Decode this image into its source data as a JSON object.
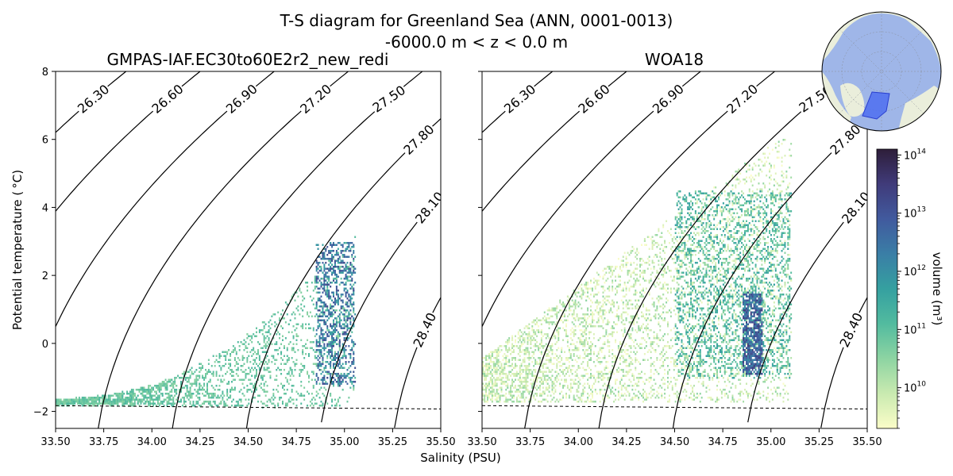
{
  "figure": {
    "title_line1": "T-S diagram for Greenland Sea (ANN, 0001-0013)",
    "title_line2": "-6000.0 m < z < 0.0 m",
    "xlabel": "Salinity (PSU)",
    "ylabel": "Potential temperature ( °C)",
    "colorbar_label": "volume (m³)"
  },
  "chart_data": [
    {
      "type": "heatmap",
      "title": "GMPAS-IAF.EC30to60E2r2_new_redi",
      "xlim": [
        33.5,
        35.5
      ],
      "ylim": [
        -2.5,
        8
      ],
      "xticks": [
        "33.50",
        "33.75",
        "34.00",
        "34.25",
        "34.50",
        "34.75",
        "35.00",
        "35.25",
        "35.50"
      ],
      "yticks": [
        "−2",
        "0",
        "2",
        "4",
        "6",
        "8"
      ],
      "density_contours": [
        "26.30",
        "26.60",
        "26.90",
        "27.20",
        "27.50",
        "27.80",
        "28.10",
        "28.40"
      ],
      "freezing_line": {
        "style": "dashed",
        "points": [
          [
            33.5,
            -1.83
          ],
          [
            35.5,
            -1.93
          ]
        ]
      },
      "scatter_regions": [
        {
          "s_min": 33.5,
          "s_max": 35.05,
          "t_min": -1.9,
          "t_max": 3.5,
          "volume_log10": [
            10.5,
            11.2
          ]
        },
        {
          "s_min": 34.85,
          "s_max": 35.05,
          "t_min": -1.2,
          "t_max": 3.0,
          "volume_log10": [
            11.5,
            13.3
          ]
        }
      ]
    },
    {
      "type": "heatmap",
      "title": "WOA18",
      "xlim": [
        33.5,
        35.5
      ],
      "ylim": [
        -2.5,
        8
      ],
      "xticks": [
        "33.50",
        "33.75",
        "34.00",
        "34.25",
        "34.50",
        "34.75",
        "35.00",
        "35.25",
        "35.50"
      ],
      "density_contours": [
        "26.30",
        "26.60",
        "26.90",
        "27.20",
        "27.50",
        "27.80",
        "28.10",
        "28.40"
      ],
      "freezing_line": {
        "style": "dashed",
        "points": [
          [
            33.5,
            -1.83
          ],
          [
            35.5,
            -1.93
          ]
        ]
      },
      "scatter_regions": [
        {
          "s_min": 33.5,
          "s_max": 35.1,
          "t_min": -1.7,
          "t_max": 6.0,
          "volume_log10": [
            9.3,
            10.5
          ]
        },
        {
          "s_min": 34.5,
          "s_max": 35.1,
          "t_min": -1.0,
          "t_max": 4.5,
          "volume_log10": [
            10.5,
            11.8
          ]
        },
        {
          "s_min": 34.85,
          "s_max": 34.95,
          "t_min": -0.9,
          "t_max": 1.5,
          "volume_log10": [
            12.0,
            13.5
          ]
        }
      ]
    }
  ],
  "colorbar": {
    "scale": "log",
    "range_log10": [
      9.3,
      14.1
    ],
    "ticks": [
      "10",
      "10",
      "10",
      "10",
      "10"
    ],
    "tick_exponents": [
      "10",
      "11",
      "12",
      "13",
      "14"
    ],
    "colors": [
      "#fbfdc8",
      "#c9eab0",
      "#8dd4a2",
      "#52bb9f",
      "#35a0a0",
      "#3a7ea6",
      "#415a9e",
      "#403b7a",
      "#2e1e3a"
    ]
  },
  "inset_map": {
    "ocean_color": "#9fb6e8",
    "land_color": "#eaeedb",
    "region_color": "#4e6ef0"
  }
}
